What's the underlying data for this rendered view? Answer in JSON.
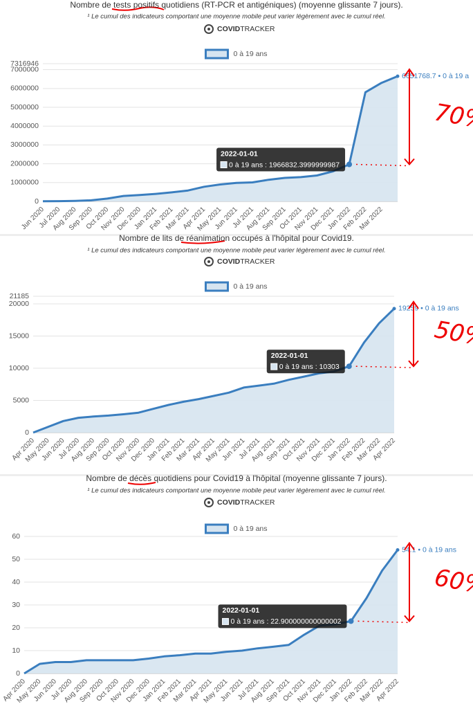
{
  "chart_data": [
    {
      "type": "line",
      "title": "Nombre de tests positifs quotidiens (RT-PCR et antigéniques) (moyenne glissante 7 jours).",
      "subtitle": "¹ Le cumul des indicateurs comportant une moyenne mobile peut varier légèrement avec le cumul réel.",
      "brand": [
        "COVID",
        "TRACKER"
      ],
      "categories": [
        "Jun 2020",
        "Jul 2020",
        "Aug 2020",
        "Sep 2020",
        "Oct 2020",
        "Nov 2020",
        "Dec 2020",
        "Jan 2021",
        "Feb 2021",
        "Mar 2021",
        "Apr 2021",
        "May 2021",
        "Jun 2021",
        "Jul 2021",
        "Aug 2021",
        "Sep 2021",
        "Oct 2021",
        "Nov 2021",
        "Dec 2021",
        "Jan 2022",
        "Feb 2022",
        "Mar 2022",
        null
      ],
      "series": [
        {
          "name": "0 à 19 ans",
          "color": "#3a7ebf",
          "values": [
            10000,
            15000,
            30000,
            60000,
            150000,
            290000,
            340000,
            400000,
            480000,
            580000,
            780000,
            900000,
            980000,
            1010000,
            1150000,
            1250000,
            1290000,
            1380000,
            1600000,
            1966832.3999999987,
            5800000,
            6300000,
            6651768.7
          ]
        }
      ],
      "ylim": [
        0,
        7316946
      ],
      "yticks": [
        0,
        1000000,
        2000000,
        3000000,
        4000000,
        5000000,
        6000000,
        7000000,
        7316946
      ],
      "grid": true,
      "tooltip": {
        "date": "2022-01-01",
        "text": "0 à 19 ans : 1966832.3999999987",
        "value": 1966832.3999999987
      },
      "end_label": "6651768.7 • 0 à 19 a",
      "annotation": "70%"
    },
    {
      "type": "line",
      "title": "Nombre de lits de réanimation occupés à l'hôpital pour Covid19.",
      "subtitle": "¹ Le cumul des indicateurs comportant une moyenne mobile peut varier légèrement avec le cumul réel.",
      "brand": [
        "COVID",
        "TRACKER"
      ],
      "categories": [
        "Apr 2020",
        "May 2020",
        "Jun 2020",
        "Jul 2020",
        "Aug 2020",
        "Sep 2020",
        "Oct 2020",
        "Nov 2020",
        "Dec 2020",
        "Jan 2021",
        "Feb 2021",
        "Mar 2021",
        "Apr 2021",
        "May 2021",
        "Jun 2021",
        "Jul 2021",
        "Aug 2021",
        "Sep 2021",
        "Oct 2021",
        "Nov 2021",
        "Dec 2021",
        "Jan 2022",
        "Feb 2022",
        "Mar 2022",
        "Apr 2022"
      ],
      "series": [
        {
          "name": "0 à 19 ans",
          "color": "#3a7ebf",
          "values": [
            0,
            900,
            1800,
            2300,
            2500,
            2650,
            2850,
            3100,
            3700,
            4300,
            4800,
            5200,
            5700,
            6200,
            7000,
            7300,
            7600,
            8200,
            8700,
            9200,
            9500,
            10303,
            14000,
            17000,
            19259
          ]
        }
      ],
      "ylim": [
        0,
        21185
      ],
      "yticks": [
        0,
        5000,
        10000,
        15000,
        20000,
        21185
      ],
      "grid": true,
      "tooltip": {
        "date": "2022-01-01",
        "text": "0 à 19 ans : 10303",
        "value": 10303
      },
      "end_label": "19259 • 0 à 19 ans",
      "annotation": "50%"
    },
    {
      "type": "line",
      "title": "Nombre de décès quotidiens pour Covid19 à l'hôpital (moyenne glissante 7 jours).",
      "subtitle": "¹ Le cumul des indicateurs comportant une moyenne mobile peut varier légèrement avec le cumul réel.",
      "brand": [
        "COVID",
        "TRACKER"
      ],
      "categories": [
        "Apr 2020",
        "May 2020",
        "Jun 2020",
        "Jul 2020",
        "Aug 2020",
        "Sep 2020",
        "Oct 2020",
        "Nov 2020",
        "Dec 2020",
        "Jan 2021",
        "Feb 2021",
        "Mar 2021",
        "Apr 2021",
        "May 2021",
        "Jun 2021",
        "Jul 2021",
        "Aug 2021",
        "Sep 2021",
        "Oct 2021",
        "Nov 2021",
        "Dec 2021",
        "Jan 2022",
        "Feb 2022",
        "Mar 2022",
        "Apr 2022"
      ],
      "series": [
        {
          "name": "0 à 19 ans",
          "color": "#3a7ebf",
          "values": [
            0,
            4.2,
            5,
            5,
            5.8,
            5.8,
            5.8,
            5.8,
            6.5,
            7.5,
            8,
            8.7,
            8.7,
            9.5,
            10,
            11,
            11.7,
            12.5,
            17,
            21,
            21.5,
            22.900000000000002,
            33,
            45,
            54.1
          ]
        }
      ],
      "ylim": [
        0,
        60
      ],
      "yticks": [
        0,
        10,
        20,
        30,
        40,
        50,
        60
      ],
      "grid": true,
      "tooltip": {
        "date": "2022-01-01",
        "text": "0 à 19 ans : 22.900000000000002",
        "value": 22.900000000000002
      },
      "end_label": "54.1 • 0 à 19 ans",
      "annotation": "60%"
    }
  ]
}
